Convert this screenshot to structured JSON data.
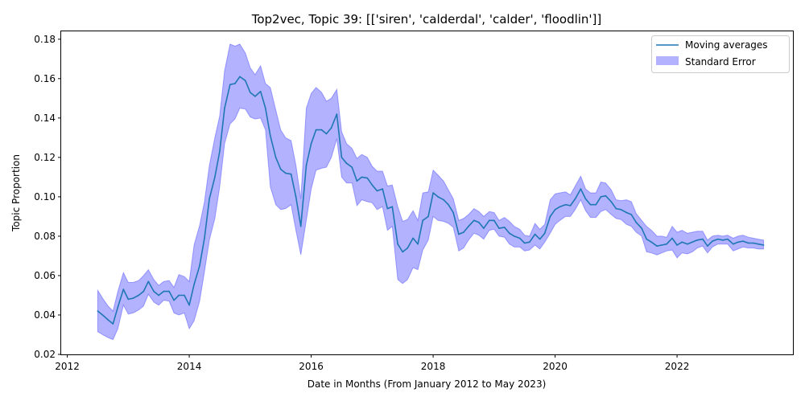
{
  "chart_data": {
    "type": "line",
    "title": "Top2vec, Topic 39: [['siren', 'calderdal', 'calder', 'floodlin']]",
    "xlabel": "Date in Months (From January 2012 to May 2023)",
    "ylabel": "Topic Proportion",
    "xlim": [
      2011.9,
      2023.9
    ],
    "ylim": [
      0.02,
      0.184
    ],
    "x_ticks": [
      2012,
      2014,
      2016,
      2018,
      2020,
      2022
    ],
    "y_ticks": [
      0.02,
      0.04,
      0.06,
      0.08,
      0.1,
      0.12,
      0.14,
      0.16,
      0.18
    ],
    "x_tick_labels": [
      "2012",
      "2014",
      "2016",
      "2018",
      "2020",
      "2022"
    ],
    "y_tick_labels": [
      "0.02",
      "0.04",
      "0.06",
      "0.08",
      "0.10",
      "0.12",
      "0.14",
      "0.16",
      "0.18"
    ],
    "grid": false,
    "legend_position": "top-right",
    "colors": {
      "line": "#1f77b4",
      "band": "#0000ff"
    },
    "series": [
      {
        "name": "Moving averages",
        "points": [
          [
            2012.5,
            0.042
          ],
          [
            2012.58,
            0.04
          ],
          [
            2012.67,
            0.0375
          ],
          [
            2012.75,
            0.0355
          ],
          [
            2012.83,
            0.044
          ],
          [
            2012.92,
            0.053
          ],
          [
            2013.0,
            0.048
          ],
          [
            2013.08,
            0.0485
          ],
          [
            2013.17,
            0.05
          ],
          [
            2013.25,
            0.052
          ],
          [
            2013.33,
            0.057
          ],
          [
            2013.42,
            0.052
          ],
          [
            2013.5,
            0.05
          ],
          [
            2013.58,
            0.052
          ],
          [
            2013.67,
            0.052
          ],
          [
            2013.75,
            0.0475
          ],
          [
            2013.83,
            0.05
          ],
          [
            2013.92,
            0.05
          ],
          [
            2014.0,
            0.045
          ],
          [
            2014.08,
            0.0555
          ],
          [
            2014.17,
            0.065
          ],
          [
            2014.25,
            0.079
          ],
          [
            2014.33,
            0.099
          ],
          [
            2014.42,
            0.11
          ],
          [
            2014.5,
            0.123
          ],
          [
            2014.58,
            0.145
          ],
          [
            2014.67,
            0.157
          ],
          [
            2014.75,
            0.1575
          ],
          [
            2014.83,
            0.161
          ],
          [
            2014.92,
            0.159
          ],
          [
            2015.0,
            0.153
          ],
          [
            2015.08,
            0.151
          ],
          [
            2015.17,
            0.1535
          ],
          [
            2015.25,
            0.145
          ],
          [
            2015.33,
            0.131
          ],
          [
            2015.42,
            0.12
          ],
          [
            2015.5,
            0.114
          ],
          [
            2015.58,
            0.112
          ],
          [
            2015.67,
            0.1115
          ],
          [
            2015.75,
            0.1
          ],
          [
            2015.83,
            0.085
          ],
          [
            2015.92,
            0.116
          ],
          [
            2016.0,
            0.127
          ],
          [
            2016.08,
            0.134
          ],
          [
            2016.17,
            0.134
          ],
          [
            2016.25,
            0.132
          ],
          [
            2016.33,
            0.135
          ],
          [
            2016.42,
            0.142
          ],
          [
            2016.5,
            0.12
          ],
          [
            2016.58,
            0.117
          ],
          [
            2016.67,
            0.115
          ],
          [
            2016.75,
            0.108
          ],
          [
            2016.83,
            0.11
          ],
          [
            2016.92,
            0.1095
          ],
          [
            2017.0,
            0.106
          ],
          [
            2017.08,
            0.103
          ],
          [
            2017.17,
            0.104
          ],
          [
            2017.25,
            0.094
          ],
          [
            2017.33,
            0.095
          ],
          [
            2017.42,
            0.076
          ],
          [
            2017.5,
            0.072
          ],
          [
            2017.58,
            0.074
          ],
          [
            2017.67,
            0.079
          ],
          [
            2017.75,
            0.076
          ],
          [
            2017.83,
            0.088
          ],
          [
            2017.92,
            0.09
          ],
          [
            2018.0,
            0.102
          ],
          [
            2018.08,
            0.1
          ],
          [
            2018.17,
            0.0985
          ],
          [
            2018.25,
            0.096
          ],
          [
            2018.33,
            0.092
          ],
          [
            2018.42,
            0.081
          ],
          [
            2018.5,
            0.082
          ],
          [
            2018.58,
            0.085
          ],
          [
            2018.67,
            0.088
          ],
          [
            2018.75,
            0.087
          ],
          [
            2018.83,
            0.084
          ],
          [
            2018.92,
            0.088
          ],
          [
            2019.0,
            0.088
          ],
          [
            2019.08,
            0.084
          ],
          [
            2019.17,
            0.0845
          ],
          [
            2019.25,
            0.0815
          ],
          [
            2019.33,
            0.08
          ],
          [
            2019.42,
            0.079
          ],
          [
            2019.5,
            0.0765
          ],
          [
            2019.58,
            0.077
          ],
          [
            2019.67,
            0.081
          ],
          [
            2019.75,
            0.0785
          ],
          [
            2019.83,
            0.0815
          ],
          [
            2019.92,
            0.09
          ],
          [
            2020.0,
            0.0935
          ],
          [
            2020.08,
            0.095
          ],
          [
            2020.17,
            0.096
          ],
          [
            2020.25,
            0.0955
          ],
          [
            2020.33,
            0.099
          ],
          [
            2020.42,
            0.104
          ],
          [
            2020.5,
            0.099
          ],
          [
            2020.58,
            0.096
          ],
          [
            2020.67,
            0.096
          ],
          [
            2020.75,
            0.1
          ],
          [
            2020.83,
            0.1005
          ],
          [
            2020.92,
            0.0975
          ],
          [
            2021.0,
            0.094
          ],
          [
            2021.08,
            0.0935
          ],
          [
            2021.17,
            0.092
          ],
          [
            2021.25,
            0.091
          ],
          [
            2021.33,
            0.087
          ],
          [
            2021.42,
            0.084
          ],
          [
            2021.5,
            0.0785
          ],
          [
            2021.58,
            0.077
          ],
          [
            2021.67,
            0.075
          ],
          [
            2021.75,
            0.0755
          ],
          [
            2021.83,
            0.076
          ],
          [
            2021.92,
            0.079
          ],
          [
            2022.0,
            0.0755
          ],
          [
            2022.08,
            0.077
          ],
          [
            2022.17,
            0.076
          ],
          [
            2022.25,
            0.077
          ],
          [
            2022.33,
            0.078
          ],
          [
            2022.42,
            0.0785
          ],
          [
            2022.5,
            0.075
          ],
          [
            2022.58,
            0.0775
          ],
          [
            2022.67,
            0.0785
          ],
          [
            2022.75,
            0.078
          ],
          [
            2022.83,
            0.0785
          ],
          [
            2022.92,
            0.076
          ],
          [
            2023.0,
            0.077
          ],
          [
            2023.08,
            0.0775
          ],
          [
            2023.17,
            0.0765
          ],
          [
            2023.25,
            0.0765
          ],
          [
            2023.33,
            0.076
          ],
          [
            2023.42,
            0.0755
          ]
        ]
      },
      {
        "name": "Standard Error",
        "upper": [
          0.0525,
          0.0485,
          0.0445,
          0.042,
          0.052,
          0.0615,
          0.0565,
          0.0565,
          0.0575,
          0.06,
          0.063,
          0.058,
          0.055,
          0.057,
          0.0575,
          0.054,
          0.0605,
          0.0595,
          0.057,
          0.0755,
          0.0855,
          0.0975,
          0.116,
          0.13,
          0.141,
          0.164,
          0.1775,
          0.1765,
          0.1775,
          0.173,
          0.1655,
          0.162,
          0.1665,
          0.1575,
          0.1555,
          0.144,
          0.134,
          0.13,
          0.1285,
          0.116,
          0.099,
          0.145,
          0.1525,
          0.1555,
          0.153,
          0.1485,
          0.15,
          0.1545,
          0.133,
          0.127,
          0.1245,
          0.1195,
          0.1215,
          0.12,
          0.1155,
          0.113,
          0.113,
          0.1055,
          0.106,
          0.095,
          0.0875,
          0.0885,
          0.093,
          0.088,
          0.102,
          0.1025,
          0.1135,
          0.111,
          0.108,
          0.1035,
          0.099,
          0.088,
          0.089,
          0.091,
          0.094,
          0.0925,
          0.09,
          0.0925,
          0.092,
          0.088,
          0.0895,
          0.0875,
          0.085,
          0.0835,
          0.0805,
          0.08,
          0.0865,
          0.0835,
          0.086,
          0.0985,
          0.1015,
          0.102,
          0.1025,
          0.101,
          0.1055,
          0.1105,
          0.104,
          0.102,
          0.102,
          0.1075,
          0.107,
          0.1035,
          0.0985,
          0.098,
          0.0985,
          0.0975,
          0.0915,
          0.088,
          0.085,
          0.083,
          0.08,
          0.08,
          0.0795,
          0.085,
          0.082,
          0.083,
          0.0815,
          0.082,
          0.0825,
          0.0825,
          0.078,
          0.08,
          0.0805,
          0.08,
          0.0805,
          0.079,
          0.08,
          0.0805,
          0.0795,
          0.079,
          0.0785,
          0.078
        ],
        "lower": [
          0.0315,
          0.03,
          0.0285,
          0.0275,
          0.033,
          0.045,
          0.0405,
          0.041,
          0.0425,
          0.0445,
          0.0505,
          0.0465,
          0.045,
          0.0475,
          0.047,
          0.041,
          0.04,
          0.041,
          0.033,
          0.037,
          0.047,
          0.062,
          0.078,
          0.089,
          0.105,
          0.127,
          0.137,
          0.1395,
          0.145,
          0.1445,
          0.1405,
          0.1395,
          0.14,
          0.134,
          0.105,
          0.096,
          0.0935,
          0.094,
          0.096,
          0.083,
          0.0705,
          0.088,
          0.104,
          0.1135,
          0.1145,
          0.115,
          0.12,
          0.1295,
          0.11,
          0.107,
          0.107,
          0.0955,
          0.0985,
          0.0975,
          0.097,
          0.0935,
          0.095,
          0.083,
          0.085,
          0.058,
          0.056,
          0.058,
          0.064,
          0.063,
          0.073,
          0.078,
          0.09,
          0.088,
          0.0875,
          0.0865,
          0.0845,
          0.0725,
          0.074,
          0.078,
          0.0815,
          0.0805,
          0.0785,
          0.083,
          0.0835,
          0.08,
          0.0795,
          0.076,
          0.0745,
          0.0745,
          0.0725,
          0.073,
          0.0755,
          0.0735,
          0.077,
          0.0815,
          0.086,
          0.088,
          0.09,
          0.09,
          0.0935,
          0.0985,
          0.093,
          0.0895,
          0.0895,
          0.0925,
          0.0935,
          0.091,
          0.089,
          0.0885,
          0.086,
          0.085,
          0.082,
          0.08,
          0.072,
          0.0715,
          0.0705,
          0.0715,
          0.0725,
          0.073,
          0.069,
          0.0715,
          0.071,
          0.072,
          0.074,
          0.075,
          0.0715,
          0.0745,
          0.076,
          0.076,
          0.076,
          0.0725,
          0.0735,
          0.0745,
          0.074,
          0.074,
          0.0735,
          0.0735
        ]
      }
    ]
  }
}
